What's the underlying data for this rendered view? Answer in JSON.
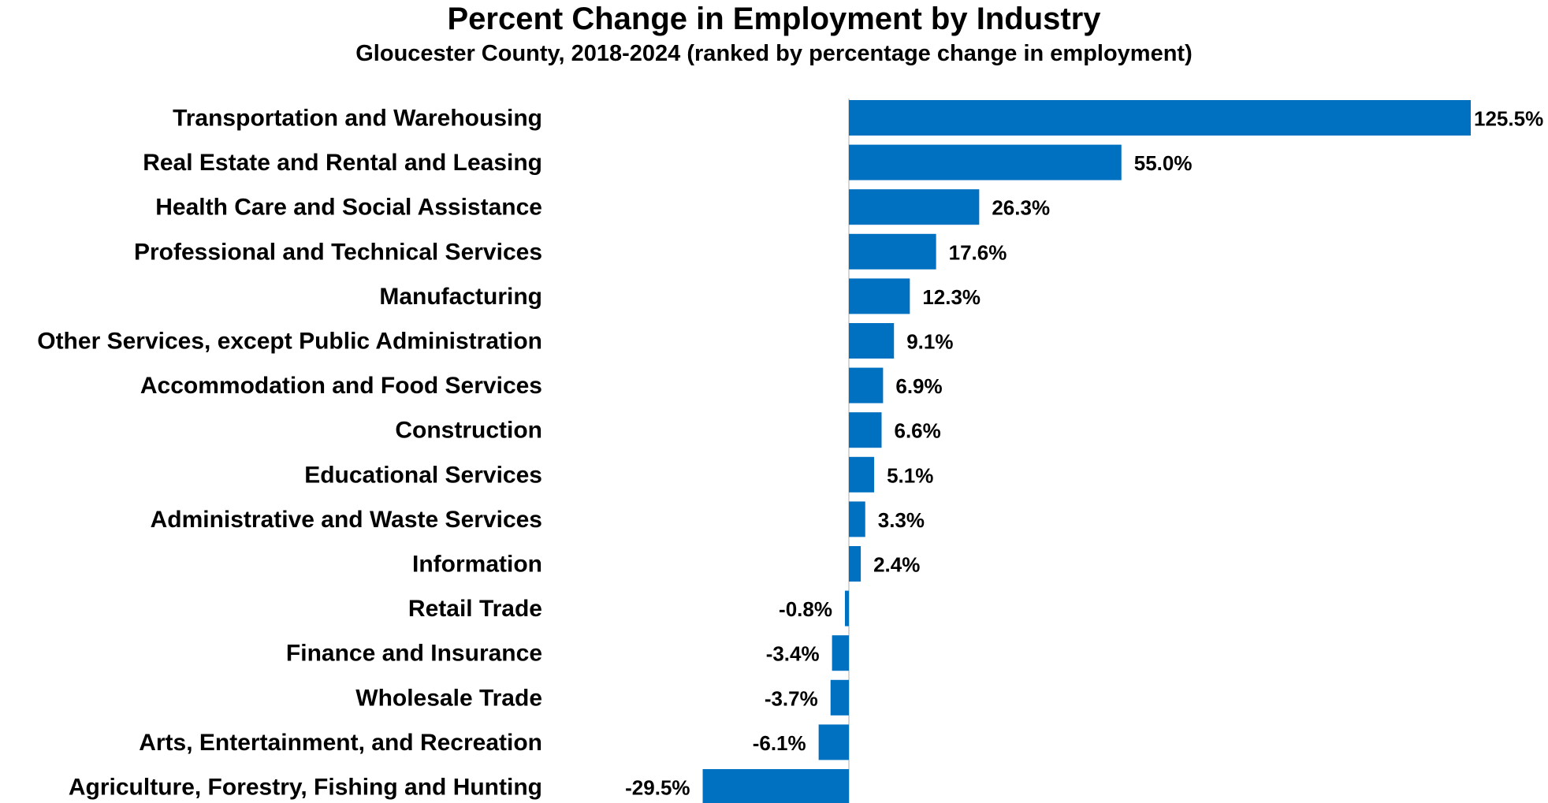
{
  "chart_data": {
    "type": "bar",
    "orientation": "horizontal",
    "title": "Percent Change in Employment by Industry",
    "subtitle": "Gloucester County, 2018-2024 (ranked by percentage change in employment)",
    "categories": [
      "Transportation and Warehousing",
      "Real Estate and Rental and Leasing",
      "Health Care and Social Assistance",
      "Professional and Technical Services",
      "Manufacturing",
      "Other Services, except Public Administration",
      "Accommodation and Food Services",
      "Construction",
      "Educational Services",
      "Administrative and Waste Services",
      "Information",
      "Retail Trade",
      "Finance and Insurance",
      "Wholesale Trade",
      "Arts, Entertainment, and Recreation",
      "Agriculture, Forestry, Fishing and Hunting"
    ],
    "values": [
      125.5,
      55.0,
      26.3,
      17.6,
      12.3,
      9.1,
      6.9,
      6.6,
      5.1,
      3.3,
      2.4,
      -0.8,
      -3.4,
      -3.7,
      -6.1,
      -29.5
    ],
    "value_labels": [
      "125.5%",
      "55.0%",
      "26.3%",
      "17.6%",
      "12.3%",
      "9.1%",
      "6.9%",
      "6.6%",
      "5.1%",
      "3.3%",
      "2.4%",
      "-0.8%",
      "-3.4%",
      "-3.7%",
      "-6.1%",
      "-29.5%"
    ],
    "xlim": [
      -29.5,
      125.5
    ],
    "grid": false,
    "legend": "none",
    "bar_color": "#0070C0",
    "axis_color": "#C8C8C8"
  }
}
